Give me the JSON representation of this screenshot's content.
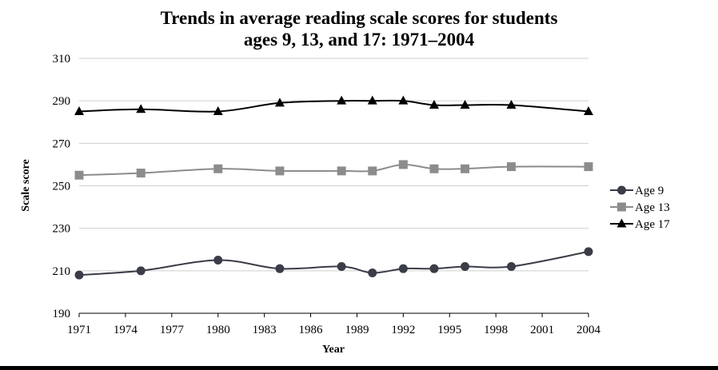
{
  "chart_data": {
    "type": "line",
    "title": "Trends in average reading scale scores for students",
    "subtitle": "ages 9, 13, and 17: 1971–2004",
    "xlabel": "Year",
    "ylabel": "Scale score",
    "xlim": [
      1971,
      2004
    ],
    "ylim": [
      190,
      310
    ],
    "xticks": [
      "1971",
      "1974",
      "1977",
      "1980",
      "1983",
      "1986",
      "1989",
      "1992",
      "1995",
      "1998",
      "2001",
      "2004"
    ],
    "yticks": [
      "190",
      "210",
      "230",
      "250",
      "270",
      "290",
      "310"
    ],
    "grid": true,
    "legend_position": "right",
    "series": [
      {
        "name": "Age 9",
        "marker": "circle",
        "color": "#3a3c47",
        "x": [
          1971,
          1975,
          1980,
          1984,
          1988,
          1990,
          1992,
          1994,
          1996,
          1999,
          2004
        ],
        "values": [
          208,
          210,
          215,
          211,
          212,
          209,
          211,
          211,
          212,
          212,
          219
        ]
      },
      {
        "name": "Age 13",
        "marker": "square",
        "color": "#8c8c8c",
        "x": [
          1971,
          1975,
          1980,
          1984,
          1988,
          1990,
          1992,
          1994,
          1996,
          1999,
          2004
        ],
        "values": [
          255,
          256,
          258,
          257,
          257,
          257,
          260,
          258,
          258,
          259,
          259
        ]
      },
      {
        "name": "Age 17",
        "marker": "triangle",
        "color": "#000000",
        "x": [
          1971,
          1975,
          1980,
          1984,
          1988,
          1990,
          1992,
          1994,
          1996,
          1999,
          2004
        ],
        "values": [
          285,
          286,
          285,
          289,
          290,
          290,
          290,
          288,
          288,
          288,
          285
        ]
      }
    ]
  }
}
